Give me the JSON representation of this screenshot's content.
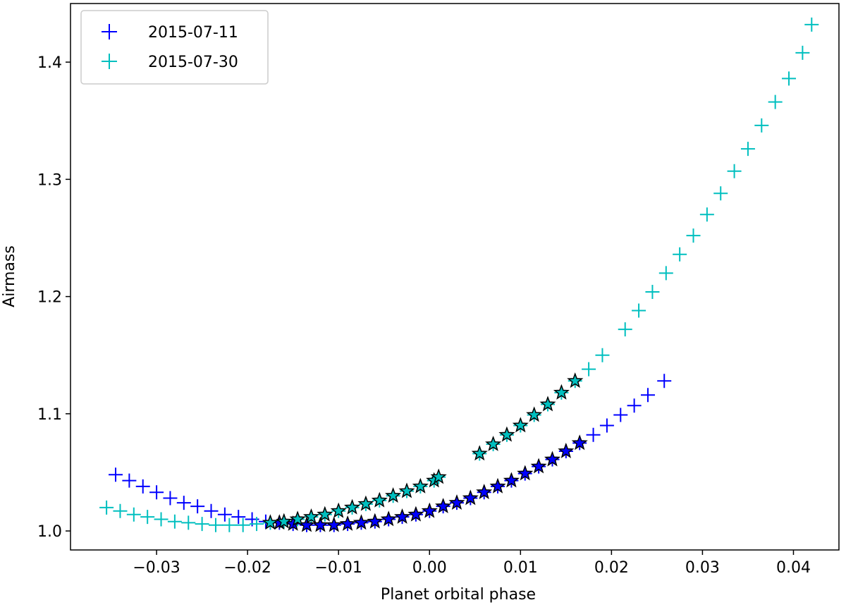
{
  "chart_data": {
    "type": "scatter",
    "xlabel": "Planet orbital phase",
    "ylabel": "Airmass",
    "xlim": [
      -0.03946,
      0.045
    ],
    "ylim": [
      0.9838,
      1.45
    ],
    "xticks": [
      {
        "value": -0.03,
        "label": "−0.03"
      },
      {
        "value": -0.02,
        "label": "−0.02"
      },
      {
        "value": -0.01,
        "label": "−0.01"
      },
      {
        "value": 0,
        "label": "0.00"
      },
      0.01,
      0.02,
      0.03,
      0.04
    ],
    "yticks": [
      {
        "value": 1.0,
        "label": "1.0"
      },
      1.1,
      1.2,
      1.3,
      1.4
    ],
    "legend": "upper left",
    "series": [
      {
        "name": "2015-07-11",
        "color": "#0000ff",
        "marker": "plus",
        "x": [
          -0.0345,
          -0.033,
          -0.0315,
          -0.03,
          -0.0285,
          -0.027,
          -0.0255,
          -0.024,
          -0.0225,
          -0.021,
          -0.0195,
          -0.018,
          -0.0165,
          -0.015,
          -0.0135,
          -0.012,
          -0.0105,
          -0.009,
          -0.0075,
          -0.006,
          -0.0045,
          -0.003,
          -0.0015,
          0,
          0.0015,
          0.003,
          0.0045,
          0.006,
          0.0075,
          0.009,
          0.0105,
          0.012,
          0.0135,
          0.015,
          0.0165,
          0.018,
          0.0195,
          0.021,
          0.0225,
          0.024,
          0.0258
        ],
        "values": [
          1.048,
          1.043,
          1.038,
          1.033,
          1.028,
          1.024,
          1.021,
          1.017,
          1.014,
          1.012,
          1.01,
          1.008,
          1.007,
          1.006,
          1.005,
          1.005,
          1.005,
          1.006,
          1.007,
          1.008,
          1.01,
          1.012,
          1.014,
          1.017,
          1.021,
          1.024,
          1.028,
          1.033,
          1.038,
          1.043,
          1.049,
          1.055,
          1.061,
          1.068,
          1.075,
          1.082,
          1.09,
          1.099,
          1.107,
          1.116,
          1.128
        ]
      },
      {
        "name": "2015-07-30",
        "color": "#00bfbf",
        "marker": "plus",
        "x": [
          -0.0355,
          -0.034,
          -0.0325,
          -0.031,
          -0.0295,
          -0.028,
          -0.0265,
          -0.025,
          -0.0235,
          -0.022,
          -0.0205,
          -0.019,
          -0.0175,
          -0.016,
          -0.0145,
          -0.013,
          -0.0115,
          -0.01,
          -0.0085,
          -0.007,
          -0.0055,
          -0.004,
          -0.0025,
          -0.001,
          0.0005,
          0.001,
          0.0055,
          0.007,
          0.0085,
          0.01,
          0.0115,
          0.013,
          0.0145,
          0.016,
          0.0175,
          0.019,
          0.0215,
          0.023,
          0.0245,
          0.026,
          0.0275,
          0.029,
          0.0305,
          0.032,
          0.0335,
          0.035,
          0.0365,
          0.038,
          0.0395,
          0.041,
          0.042
        ],
        "values": [
          1.02,
          1.017,
          1.014,
          1.012,
          1.01,
          1.008,
          1.007,
          1.006,
          1.005,
          1.005,
          1.005,
          1.006,
          1.007,
          1.008,
          1.01,
          1.012,
          1.014,
          1.017,
          1.02,
          1.023,
          1.026,
          1.03,
          1.034,
          1.038,
          1.043,
          1.046,
          1.066,
          1.074,
          1.082,
          1.09,
          1.099,
          1.108,
          1.118,
          1.128,
          1.138,
          1.15,
          1.172,
          1.188,
          1.204,
          1.22,
          1.236,
          1.252,
          1.27,
          1.288,
          1.307,
          1.326,
          1.346,
          1.366,
          1.386,
          1.408,
          1.432
        ]
      },
      {
        "color": "#0000ff",
        "marker": "star",
        "x": [
          -0.0165,
          -0.015,
          -0.0135,
          -0.012,
          -0.0105,
          -0.009,
          -0.0075,
          -0.006,
          -0.0045,
          -0.003,
          -0.0015,
          0,
          0.0015,
          0.003,
          0.0045,
          0.006,
          0.0075,
          0.009,
          0.0105,
          0.012,
          0.0135,
          0.015,
          0.0165
        ],
        "values": [
          1.007,
          1.006,
          1.005,
          1.005,
          1.005,
          1.006,
          1.007,
          1.008,
          1.01,
          1.012,
          1.014,
          1.017,
          1.021,
          1.024,
          1.028,
          1.033,
          1.038,
          1.043,
          1.049,
          1.055,
          1.061,
          1.068,
          1.075
        ]
      },
      {
        "color": "#00bfbf",
        "marker": "star",
        "x": [
          -0.0175,
          -0.016,
          -0.0145,
          -0.013,
          -0.0115,
          -0.01,
          -0.0085,
          -0.007,
          -0.0055,
          -0.004,
          -0.0025,
          -0.001,
          0.0005,
          0.001,
          0.0055,
          0.007,
          0.0085,
          0.01,
          0.0115,
          0.013,
          0.0145,
          0.016
        ],
        "values": [
          1.007,
          1.008,
          1.01,
          1.012,
          1.014,
          1.017,
          1.02,
          1.023,
          1.026,
          1.03,
          1.034,
          1.038,
          1.043,
          1.046,
          1.066,
          1.074,
          1.082,
          1.09,
          1.099,
          1.108,
          1.118,
          1.128
        ]
      }
    ]
  }
}
